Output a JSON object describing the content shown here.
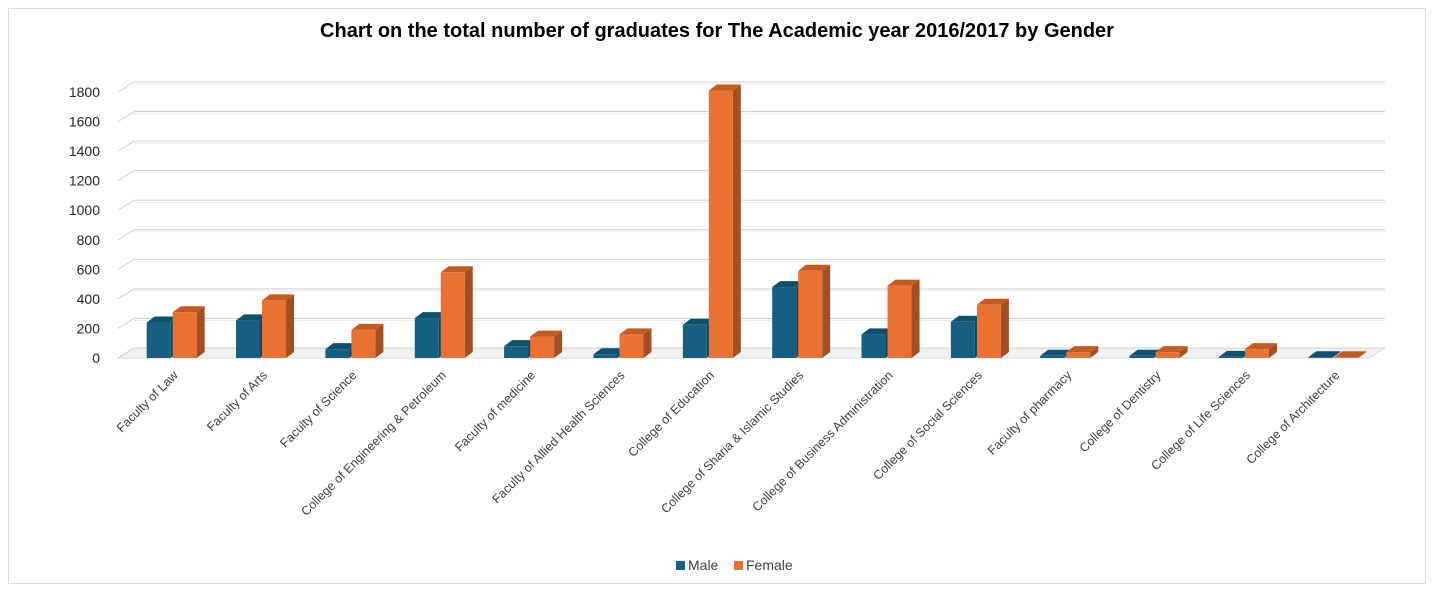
{
  "chart_data": {
    "type": "bar",
    "title": "Chart on the total number of graduates for The Academic year 2016/2017 by Gender",
    "xlabel": "",
    "ylabel": "",
    "ylim": [
      0,
      1800
    ],
    "yticks": [
      0,
      200,
      400,
      600,
      800,
      1000,
      1200,
      1400,
      1600,
      1800
    ],
    "grid": true,
    "legend_position": "bottom",
    "categories": [
      "Faculty of Law",
      "Faculty of Arts",
      "Faculty of Science",
      "College of Engineering & Petroleum",
      "Faculty of medicine",
      "Faculty of Allied Health Sciences",
      "College of Education",
      "College of Sharia & Islamic Studies",
      "College of Business Administration",
      "College of Social Sciences",
      "Faculty of pharmacy",
      "College of Dentistry",
      "College of Life Sciences",
      "College of Architecture"
    ],
    "series": [
      {
        "name": "Male",
        "color": "#156082",
        "values": [
          240,
          255,
          60,
          270,
          80,
          25,
          225,
          480,
          160,
          245,
          15,
          15,
          8,
          5
        ]
      },
      {
        "name": "Female",
        "color": "#E97132",
        "values": [
          310,
          390,
          190,
          580,
          145,
          160,
          1810,
          590,
          490,
          360,
          40,
          40,
          60,
          5
        ]
      }
    ]
  }
}
